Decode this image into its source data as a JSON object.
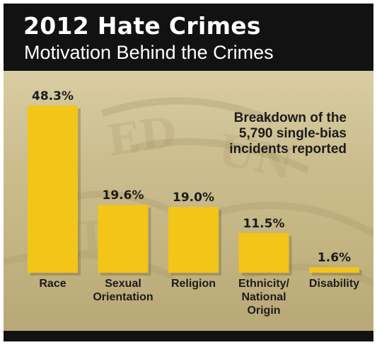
{
  "header": {
    "title": "2012 Hate Crimes",
    "subtitle": "Motivation Behind the Crimes"
  },
  "note": {
    "lines": [
      "Breakdown of the",
      "5,790 single-bias",
      "incidents reported"
    ]
  },
  "colors": {
    "bar": "#f2c518",
    "header_bg": "#121212",
    "text_dark": "#1c1c1c"
  },
  "chart_data": {
    "type": "bar",
    "title": "2012 Hate Crimes",
    "subtitle": "Motivation Behind the Crimes",
    "categories": [
      [
        "Race"
      ],
      [
        "Sexual",
        "Orientation"
      ],
      [
        "Religion"
      ],
      [
        "Ethnicity/",
        "National",
        "Origin"
      ],
      [
        "Disability"
      ]
    ],
    "values": [
      48.3,
      19.6,
      19.0,
      11.5,
      1.6
    ],
    "value_labels": [
      "48.3%",
      "19.6%",
      "19.0%",
      "11.5%",
      "1.6%"
    ],
    "unit": "%",
    "ylim": [
      0,
      48.3
    ],
    "grid": false,
    "legend": "none",
    "annotation": "Breakdown of the 5,790 single-bias incidents reported"
  }
}
